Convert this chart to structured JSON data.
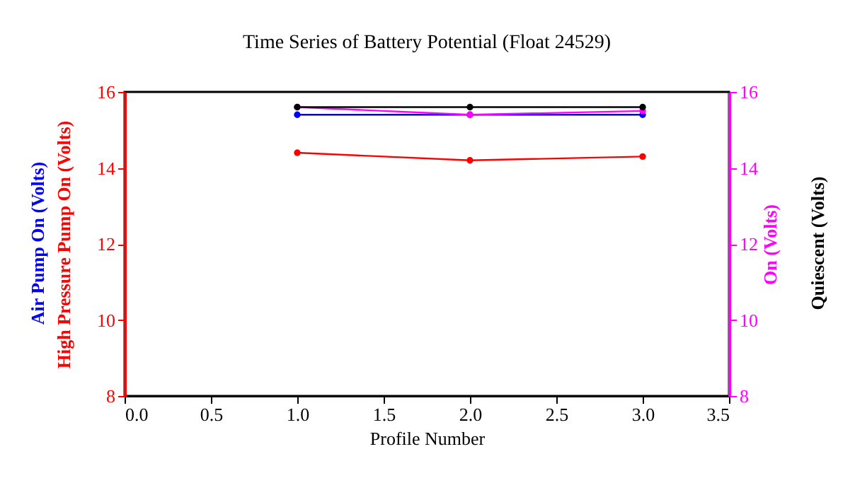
{
  "chart_data": {
    "type": "line",
    "title": "Time Series of Battery Potential (Float 24529)",
    "xlabel": "Profile Number",
    "x": [
      1,
      2,
      3
    ],
    "series": [
      {
        "name": "Air Pump On (Volts)",
        "color": "#0000ff",
        "values": [
          15.4,
          15.4,
          15.4
        ]
      },
      {
        "name": "High Pressure Pump On (Volts)",
        "color": "#ff0000",
        "values": [
          14.4,
          14.2,
          14.3
        ]
      },
      {
        "name": "On (Volts)",
        "color": "#ff00ff",
        "axis": "y2",
        "values": [
          15.6,
          15.4,
          15.5
        ]
      },
      {
        "name": "Quiescent (Volts)",
        "color": "#000000",
        "axis": "y2",
        "values": [
          15.6,
          15.6,
          15.6
        ]
      }
    ],
    "xlim": [
      0,
      3.5
    ],
    "xticks": [
      {
        "value": 0,
        "label": "0.0"
      },
      {
        "value": 0.5,
        "label": "0.5"
      },
      {
        "value": 1,
        "label": "1.0"
      },
      {
        "value": 1.5,
        "label": "1.5"
      },
      {
        "value": 2,
        "label": "2.0"
      },
      {
        "value": 2.5,
        "label": "2.5"
      },
      {
        "value": 3,
        "label": "3.0"
      },
      {
        "value": 3.5,
        "label": "3.5"
      }
    ],
    "ylim": [
      8,
      16
    ],
    "yticks": [
      8,
      10,
      12,
      14,
      16
    ],
    "y2lim": [
      8,
      16
    ],
    "y2ticks": [
      8,
      10,
      12,
      14,
      16
    ],
    "marker": "circle",
    "line_style": "solid",
    "grid": false
  }
}
